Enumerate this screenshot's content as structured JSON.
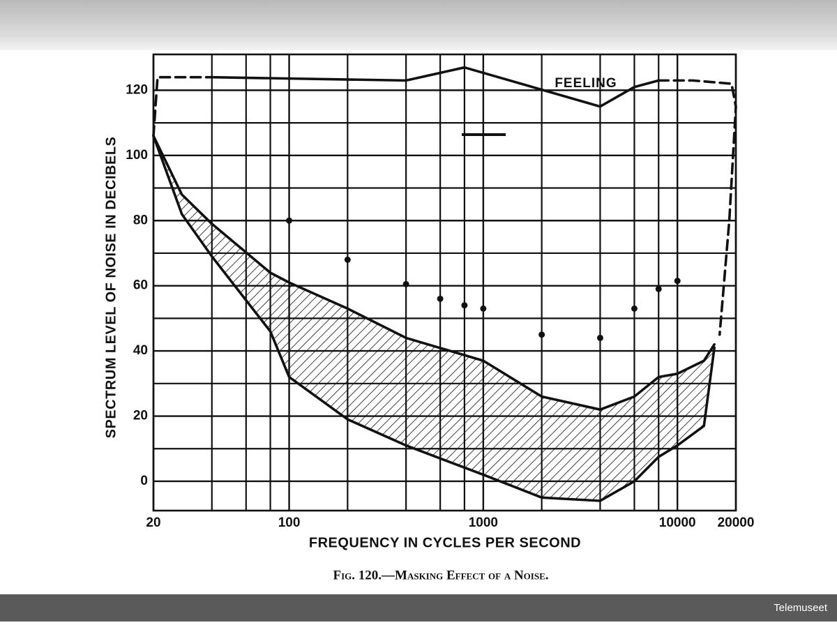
{
  "chart_data": {
    "type": "line",
    "title": "Fig. 120.—Masking Effect of a Noise.",
    "xlabel": "FREQUENCY IN CYCLES PER SECOND",
    "ylabel": "SPECTRUM LEVEL OF NOISE IN DECIBELS",
    "annotation": "FEELING",
    "source": "Telemuseet",
    "xscale": "log",
    "xlim": [
      20,
      20000
    ],
    "ylim": [
      -9,
      131
    ],
    "xticks": [
      20,
      100,
      1000,
      10000,
      20000
    ],
    "xgrid": [
      40,
      60,
      80,
      200,
      400,
      600,
      800,
      2000,
      4000,
      6000,
      8000
    ],
    "yticks": [
      0,
      20,
      40,
      60,
      80,
      100,
      120
    ],
    "ygrid": [
      10,
      30,
      50,
      70,
      90,
      110
    ],
    "grid": true,
    "color": "#111111",
    "hatch_between": [
      0,
      1
    ],
    "series": [
      {
        "style": "solid",
        "x": [
          20,
          28,
          40,
          80,
          100,
          200,
          400,
          1000,
          2000,
          4000,
          6000,
          8000,
          10000,
          13700,
          15500
        ],
        "values": [
          106,
          88,
          79,
          64,
          61,
          53,
          44,
          37,
          26,
          22,
          26,
          32,
          33,
          37,
          42
        ]
      },
      {
        "style": "solid",
        "x": [
          20,
          28,
          40,
          80,
          100,
          200,
          400,
          1000,
          2000,
          4000,
          6000,
          8000,
          10000,
          13700,
          15500
        ],
        "values": [
          106,
          82,
          69,
          46,
          32,
          19,
          11,
          2,
          -5,
          -6,
          0,
          7.5,
          11,
          17,
          41
        ]
      },
      {
        "style": "solid",
        "x": [
          40,
          400,
          800,
          4000,
          6000,
          8000
        ],
        "values": [
          124,
          123,
          127,
          115,
          121,
          123
        ]
      },
      {
        "style": "dashed",
        "x": [
          20,
          21,
          40
        ],
        "values": [
          106,
          124,
          124
        ]
      },
      {
        "style": "dashed",
        "x": [
          8000,
          12000,
          19000,
          20000,
          18500,
          16500
        ],
        "values": [
          123,
          123,
          122,
          115,
          80,
          45
        ]
      },
      {
        "style": "points",
        "x": [
          100,
          200,
          400,
          600,
          800,
          1000,
          2000,
          4000,
          6000,
          8000,
          10000
        ],
        "values": [
          80,
          68,
          60.5,
          56,
          54,
          53,
          45,
          44,
          53,
          59,
          61.5
        ]
      }
    ]
  }
}
